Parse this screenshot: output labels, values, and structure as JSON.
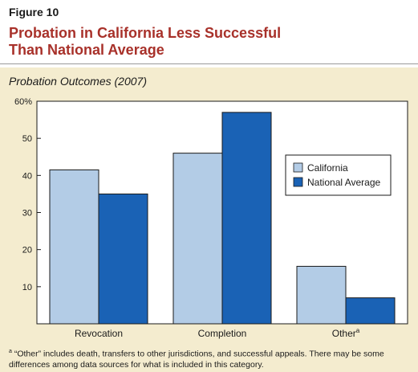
{
  "figure_label": "Figure 10",
  "title_lines": [
    "Probation in California Less Successful",
    "Than National Average"
  ],
  "chart_data": {
    "type": "bar",
    "subtitle": "Probation Outcomes (2007)",
    "categories": [
      "Revocation",
      "Completion",
      "Other"
    ],
    "category_superscripts": [
      "",
      "",
      "a"
    ],
    "series": [
      {
        "name": "California",
        "values": [
          41.5,
          46,
          15.5
        ],
        "color": "#b3cce6"
      },
      {
        "name": "National Average",
        "values": [
          35,
          57,
          7
        ],
        "color": "#1a62b5"
      }
    ],
    "ylim": [
      0,
      60
    ],
    "yticks": [
      10,
      20,
      30,
      40,
      50,
      60
    ],
    "ytick_labels": [
      "10",
      "20",
      "30",
      "40",
      "50",
      "60%"
    ],
    "grid": false,
    "legend_position": "right"
  },
  "footnote": {
    "marker": "a",
    "text": " “Other” includes death, transfers to other jurisdictions, and successful appeals. There may be some differences among data sources for what is included in this category."
  }
}
